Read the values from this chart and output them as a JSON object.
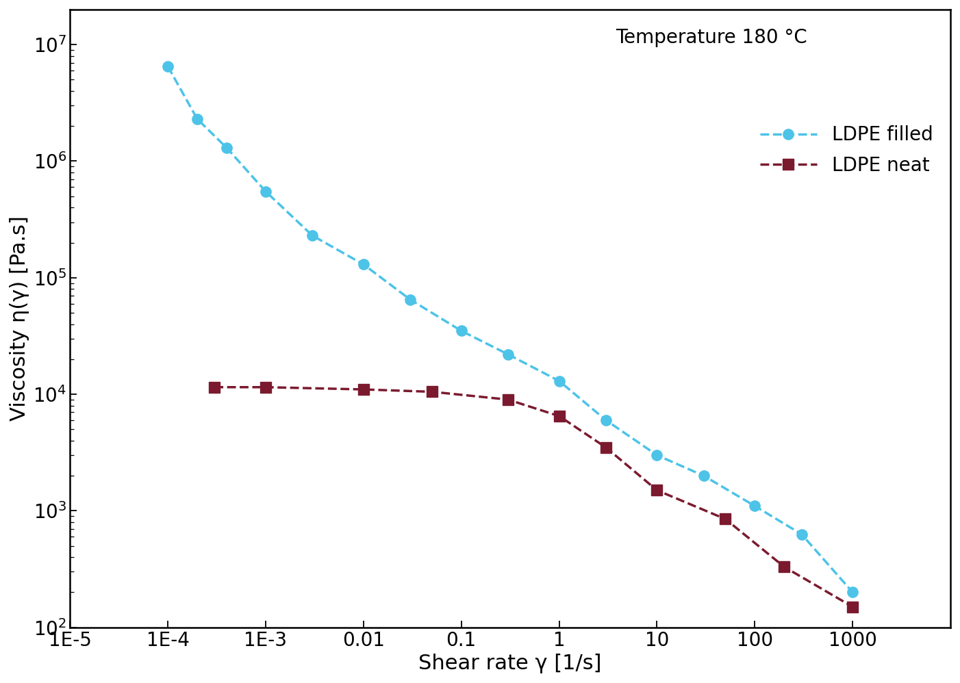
{
  "ldpe_filled_x": [
    0.0001,
    0.0002,
    0.0004,
    0.001,
    0.003,
    0.01,
    0.03,
    0.1,
    0.3,
    1.0,
    3.0,
    10.0,
    30.0,
    100.0,
    300.0,
    1000.0
  ],
  "ldpe_filled_y": [
    6500000.0,
    2300000.0,
    1300000.0,
    550000.0,
    230000.0,
    130000.0,
    65000.0,
    35000.0,
    22000.0,
    13000.0,
    6000,
    3000,
    2000,
    1100,
    630,
    200
  ],
  "ldpe_neat_x": [
    0.0003,
    0.001,
    0.01,
    0.05,
    0.3,
    1.0,
    3.0,
    10.0,
    50.0,
    200.0,
    1000.0
  ],
  "ldpe_neat_y": [
    11500.0,
    11500.0,
    11000.0,
    10500.0,
    9000,
    6500,
    3500,
    1500,
    850,
    330,
    150
  ],
  "ldpe_filled_color": "#4DC3E8",
  "ldpe_neat_color": "#7B1A2E",
  "xlabel": "Shear rate γ [1/s]",
  "ylabel": "Viscosity η(γ) [Pa.s]",
  "annotation": "Temperature 180 °C",
  "legend_filled": "LDPE filled",
  "legend_neat": "LDPE neat",
  "xlim": [
    1e-05,
    10000.0
  ],
  "ylim": [
    100.0,
    20000000.0
  ],
  "x_ticks": [
    1e-05,
    0.0001,
    0.001,
    0.01,
    0.1,
    1.0,
    10.0,
    100.0,
    1000.0
  ],
  "x_labels": [
    "1E-5",
    "1E-4",
    "1E-3",
    "0.01",
    "0.1",
    "1",
    "10",
    "100",
    "1000"
  ],
  "y_ticks": [
    100.0,
    1000.0,
    10000.0,
    100000.0,
    1000000.0,
    10000000.0
  ],
  "y_labels": [
    "10$^2$",
    "10$^3$",
    "10$^4$",
    "10$^5$",
    "10$^6$",
    "10$^7$"
  ],
  "background_color": "#ffffff",
  "fontsize": 22,
  "linewidth": 2.5,
  "markersize": 11
}
